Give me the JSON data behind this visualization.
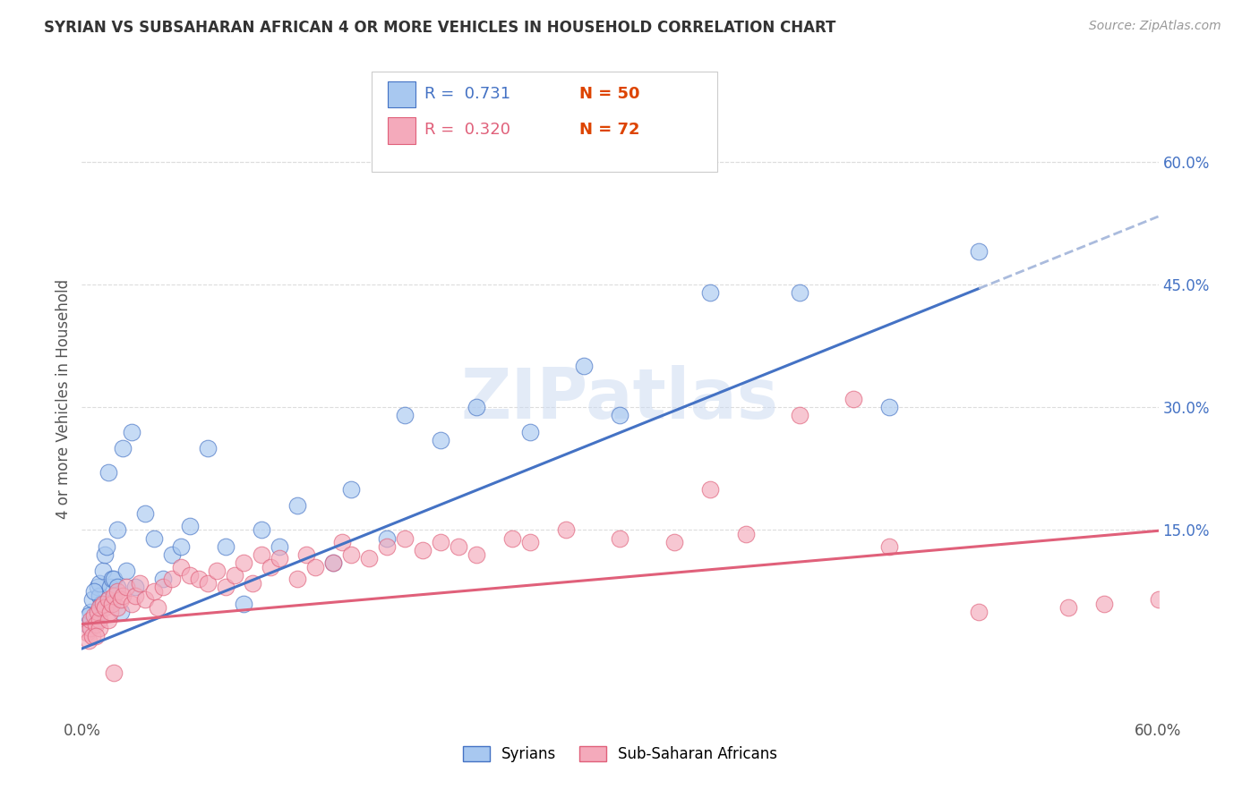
{
  "title": "SYRIAN VS SUBSAHARAN AFRICAN 4 OR MORE VEHICLES IN HOUSEHOLD CORRELATION CHART",
  "source": "Source: ZipAtlas.com",
  "ylabel": "4 or more Vehicles in Household",
  "right_ytick_labels": [
    "60.0%",
    "45.0%",
    "30.0%",
    "15.0%"
  ],
  "right_ytick_values": [
    60.0,
    45.0,
    30.0,
    15.0
  ],
  "xlim": [
    0.0,
    60.0
  ],
  "ylim": [
    -8.0,
    70.0
  ],
  "x_ticks": [
    0.0,
    15.0,
    30.0,
    45.0,
    60.0
  ],
  "x_tick_labels": [
    "0.0%",
    "",
    "",
    "",
    "60.0%"
  ],
  "legend_r1": "R =  0.731",
  "legend_n1": "N = 50",
  "legend_r2": "R =  0.320",
  "legend_n2": "N = 72",
  "blue_color": "#A8C8F0",
  "blue_line_color": "#4472C4",
  "pink_color": "#F4AABB",
  "pink_line_color": "#E0607A",
  "label1": "Syrians",
  "label2": "Sub-Saharan Africans",
  "watermark": "ZIPatlas",
  "grid_color": "#DDDDDD",
  "blue_reg_start_x": 0.0,
  "blue_reg_start_y": 0.5,
  "blue_reg_slope": 0.88,
  "blue_solid_end_x": 50.0,
  "pink_reg_start_x": 0.0,
  "pink_reg_start_y": 3.5,
  "pink_reg_slope": 0.19,
  "syrians_x": [
    0.3,
    0.5,
    0.6,
    0.8,
    0.9,
    1.0,
    1.0,
    1.1,
    1.2,
    1.3,
    1.4,
    1.5,
    1.6,
    1.7,
    1.8,
    2.0,
    2.0,
    2.2,
    2.5,
    2.8,
    3.0,
    3.5,
    4.0,
    4.5,
    5.0,
    5.5,
    6.0,
    7.0,
    8.0,
    9.0,
    10.0,
    11.0,
    12.0,
    14.0,
    15.0,
    17.0,
    18.0,
    20.0,
    22.0,
    25.0,
    28.0,
    30.0,
    35.0,
    40.0,
    45.0,
    50.0,
    0.4,
    0.7,
    1.5,
    2.3
  ],
  "syrians_y": [
    3.5,
    5.0,
    6.5,
    4.0,
    8.0,
    7.0,
    8.5,
    6.0,
    10.0,
    12.0,
    13.0,
    6.0,
    8.0,
    9.0,
    9.0,
    8.0,
    15.0,
    5.0,
    10.0,
    27.0,
    8.0,
    17.0,
    14.0,
    9.0,
    12.0,
    13.0,
    15.5,
    25.0,
    13.0,
    6.0,
    15.0,
    13.0,
    18.0,
    11.0,
    20.0,
    14.0,
    29.0,
    26.0,
    30.0,
    27.0,
    35.0,
    29.0,
    44.0,
    44.0,
    30.0,
    49.0,
    4.5,
    7.5,
    22.0,
    25.0
  ],
  "subsaharan_x": [
    0.3,
    0.4,
    0.5,
    0.5,
    0.6,
    0.7,
    0.8,
    0.9,
    1.0,
    1.0,
    1.0,
    1.2,
    1.3,
    1.5,
    1.5,
    1.6,
    1.7,
    1.8,
    2.0,
    2.0,
    2.2,
    2.3,
    2.5,
    2.8,
    3.0,
    3.2,
    3.5,
    4.0,
    4.2,
    4.5,
    5.0,
    5.5,
    6.0,
    6.5,
    7.0,
    7.5,
    8.0,
    8.5,
    9.0,
    9.5,
    10.0,
    10.5,
    11.0,
    12.0,
    12.5,
    13.0,
    14.0,
    14.5,
    15.0,
    16.0,
    17.0,
    18.0,
    19.0,
    20.0,
    21.0,
    22.0,
    24.0,
    25.0,
    27.0,
    30.0,
    33.0,
    35.0,
    37.0,
    40.0,
    43.0,
    45.0,
    50.0,
    55.0,
    57.0,
    60.0,
    0.8,
    1.8
  ],
  "subsaharan_y": [
    2.5,
    1.5,
    3.0,
    4.0,
    2.0,
    4.5,
    3.5,
    5.0,
    4.0,
    5.5,
    3.0,
    6.0,
    5.5,
    4.0,
    6.5,
    5.0,
    6.0,
    7.0,
    5.5,
    7.5,
    6.5,
    7.0,
    8.0,
    6.0,
    7.0,
    8.5,
    6.5,
    7.5,
    5.5,
    8.0,
    9.0,
    10.5,
    9.5,
    9.0,
    8.5,
    10.0,
    8.0,
    9.5,
    11.0,
    8.5,
    12.0,
    10.5,
    11.5,
    9.0,
    12.0,
    10.5,
    11.0,
    13.5,
    12.0,
    11.5,
    13.0,
    14.0,
    12.5,
    13.5,
    13.0,
    12.0,
    14.0,
    13.5,
    15.0,
    14.0,
    13.5,
    20.0,
    14.5,
    29.0,
    31.0,
    13.0,
    5.0,
    5.5,
    6.0,
    6.5,
    2.0,
    -2.5
  ]
}
